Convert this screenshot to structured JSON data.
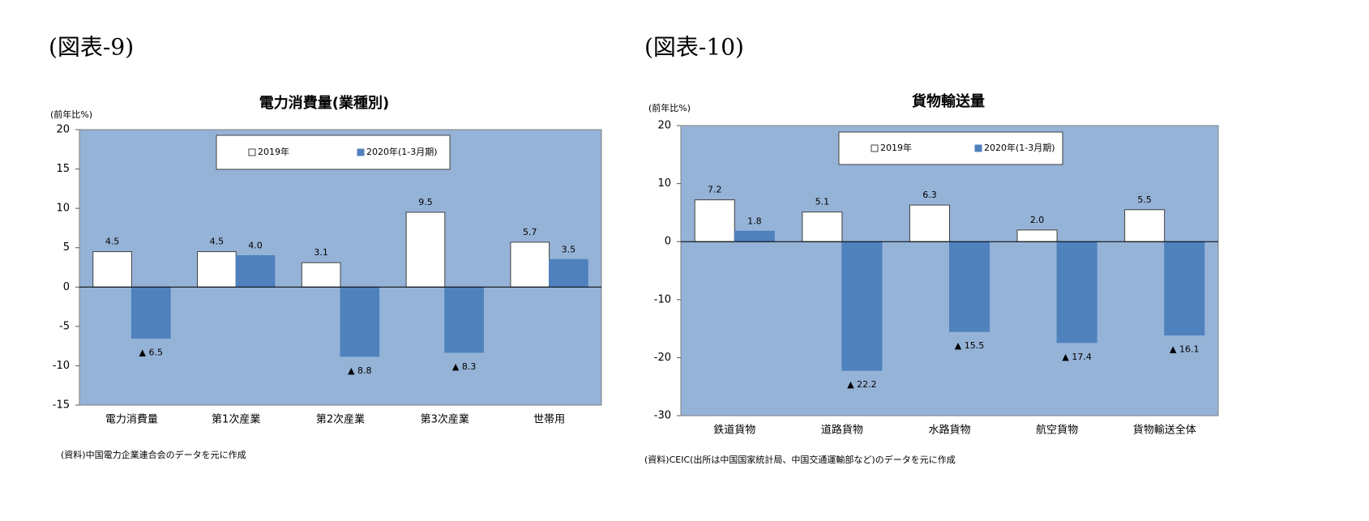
{
  "chart_data": [
    {
      "type": "bar",
      "figure_label": "(図表-9)",
      "title": "電力消費量(業種別)",
      "ylabel": "(前年比%)",
      "categories": [
        "電力消費量",
        "第1次産業",
        "第2次産業",
        "第3次産業",
        "世帯用"
      ],
      "series": [
        {
          "name": "2019年",
          "color": "#ffffff",
          "values": [
            4.5,
            4.5,
            3.1,
            9.5,
            5.7
          ],
          "value_labels": [
            "4.5",
            "4.5",
            "3.1",
            "9.5",
            "5.7"
          ]
        },
        {
          "name": "2020年(1-3月期)",
          "color": "#4f81bd",
          "values": [
            -6.5,
            4.0,
            -8.8,
            -8.3,
            3.5
          ],
          "value_labels": [
            "▲ 6.5",
            "4.0",
            "▲ 8.8",
            "▲ 8.3",
            "3.5"
          ]
        }
      ],
      "ylim": [
        -15,
        20
      ],
      "yticks": [
        -15,
        -10,
        -5,
        0,
        5,
        10,
        15,
        20
      ],
      "legend": "top",
      "source": "(資料)中国電力企業連合会のデータを元に作成"
    },
    {
      "type": "bar",
      "figure_label": "(図表-10)",
      "title": "貨物輸送量",
      "ylabel": "(前年比%)",
      "categories": [
        "鉄道貨物",
        "道路貨物",
        "水路貨物",
        "航空貨物",
        "貨物輸送全体"
      ],
      "series": [
        {
          "name": "2019年",
          "color": "#ffffff",
          "values": [
            7.2,
            5.1,
            6.3,
            2.0,
            5.5
          ],
          "value_labels": [
            "7.2",
            "5.1",
            "6.3",
            "2.0",
            "5.5"
          ]
        },
        {
          "name": "2020年(1-3月期)",
          "color": "#4f81bd",
          "values": [
            1.8,
            -22.2,
            -15.5,
            -17.4,
            -16.1
          ],
          "value_labels": [
            "1.8",
            "▲ 22.2",
            "▲ 15.5",
            "▲ 17.4",
            "▲ 16.1"
          ]
        }
      ],
      "ylim": [
        -30,
        20
      ],
      "yticks": [
        -30,
        -20,
        -10,
        0,
        10,
        20
      ],
      "legend": "top",
      "source": "(資料)CEIC(出所は中国国家統計局、中国交通運輸部など)のデータを元に作成"
    }
  ]
}
